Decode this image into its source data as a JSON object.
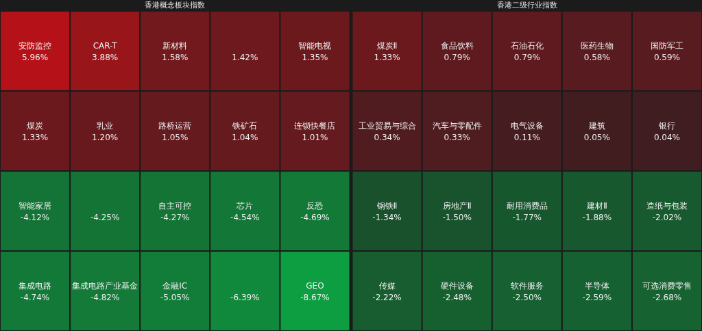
{
  "chart_data": [
    {
      "type": "other",
      "title": "香港概念板块指数",
      "categories": [
        "安防监控",
        "CAR-T",
        "新材料",
        null,
        "智能电视",
        "煤炭",
        "乳业",
        "路桥运营",
        "铁矿石",
        "连锁快餐店",
        "智能家居",
        null,
        "自主可控",
        "芯片",
        "反恐",
        "集成电路",
        "集成电路产业基金",
        "金融IC",
        null,
        "GEO"
      ],
      "values": [
        5.96,
        3.88,
        1.58,
        1.42,
        1.35,
        1.33,
        1.2,
        1.05,
        1.04,
        1.01,
        -4.12,
        -4.25,
        -4.27,
        -4.54,
        -4.69,
        -4.74,
        -4.82,
        -5.05,
        -6.39,
        -8.67
      ],
      "value_labels": [
        "5.96%",
        "3.88%",
        "1.58%",
        "1.42%",
        "1.35%",
        "1.33%",
        "1.20%",
        "1.05%",
        "1.04%",
        "1.01%",
        "-4.12%",
        "-4.25%",
        "-4.27%",
        "-4.54%",
        "-4.69%",
        "-4.74%",
        "-4.82%",
        "-5.05%",
        "-6.39%",
        "-8.67%"
      ]
    },
    {
      "type": "other",
      "title": "香港二级行业指数",
      "categories": [
        "煤炭Ⅱ",
        "食品饮料",
        "石油石化",
        "医药生物",
        "国防军工",
        "工业贸易与综合",
        "汽车与零配件",
        "电气设备",
        "建筑",
        "银行",
        "钢铁Ⅱ",
        "房地产Ⅱ",
        "耐用消费品",
        "建材Ⅱ",
        "造纸与包装",
        "传媒",
        "硬件设备",
        "软件服务",
        "半导体",
        "可选消费零售"
      ],
      "values": [
        1.33,
        0.79,
        0.79,
        0.58,
        0.59,
        0.34,
        0.33,
        0.11,
        0.05,
        0.04,
        -1.34,
        -1.5,
        -1.77,
        -1.88,
        -2.02,
        -2.22,
        -2.48,
        -2.5,
        -2.59,
        -2.68
      ],
      "value_labels": [
        "1.33%",
        "0.79%",
        "0.79%",
        "0.58%",
        "0.59%",
        "0.34%",
        "0.33%",
        "0.11%",
        "0.05%",
        "0.04%",
        "-1.34%",
        "-1.50%",
        "-1.77%",
        "-1.88%",
        "-2.02%",
        "-2.22%",
        "-2.48%",
        "-2.50%",
        "-2.59%",
        "-2.68%"
      ]
    }
  ]
}
